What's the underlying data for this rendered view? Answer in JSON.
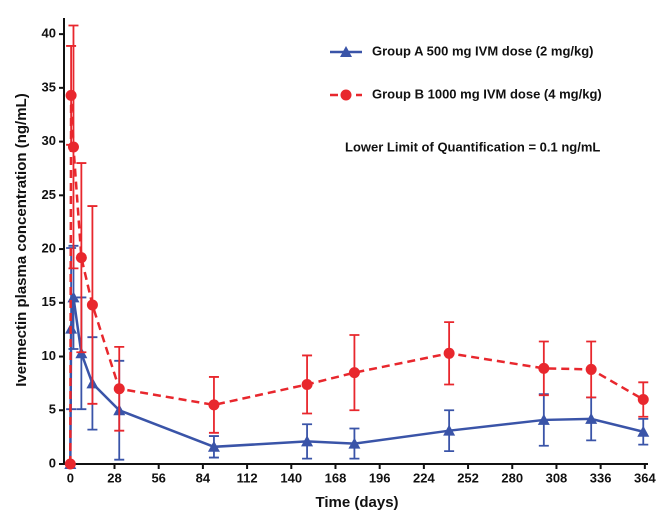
{
  "chart_data": {
    "type": "line",
    "x_label": "Time (days)",
    "y_label": "Ivermectin  plasma concentration (ng/mL)",
    "annotation": "Lower Limit of Quantification = 0.1 ng/mL",
    "x": [
      0,
      0.5,
      2,
      7,
      14,
      31,
      91,
      150,
      180,
      240,
      300,
      330,
      363
    ],
    "xlim": [
      -4,
      366
    ],
    "xticks": [
      0,
      28,
      56,
      84,
      112,
      140,
      168,
      196,
      224,
      252,
      280,
      308,
      336,
      364
    ],
    "ylim": [
      0,
      41.5
    ],
    "yticks": [
      0,
      5,
      10,
      15,
      20,
      25,
      30,
      35,
      40
    ],
    "series": [
      {
        "name": "Group A 500 mg IVM dose (2 mg/kg)",
        "color": "#3a54a8",
        "marker": "triangle",
        "line_style": "solid",
        "values": [
          0,
          12.6,
          15.5,
          10.3,
          7.5,
          5.0,
          1.6,
          2.1,
          1.9,
          3.1,
          4.1,
          4.2,
          3.0
        ],
        "errors": [
          0,
          7.5,
          4.8,
          5.2,
          4.3,
          4.6,
          1.0,
          1.6,
          1.4,
          1.9,
          2.4,
          2.0,
          1.2
        ]
      },
      {
        "name": "Group B 1000 mg IVM dose (4 mg/kg)",
        "color": "#e8272d",
        "marker": "circle",
        "line_style": "dashed",
        "values": [
          0,
          34.3,
          29.5,
          19.2,
          14.8,
          7.0,
          5.5,
          7.4,
          8.5,
          10.3,
          8.9,
          8.8,
          6.0
        ],
        "errors": [
          0,
          4.6,
          11.3,
          8.8,
          9.2,
          3.9,
          2.6,
          2.7,
          3.5,
          2.9,
          2.5,
          2.6,
          1.6
        ]
      }
    ]
  }
}
